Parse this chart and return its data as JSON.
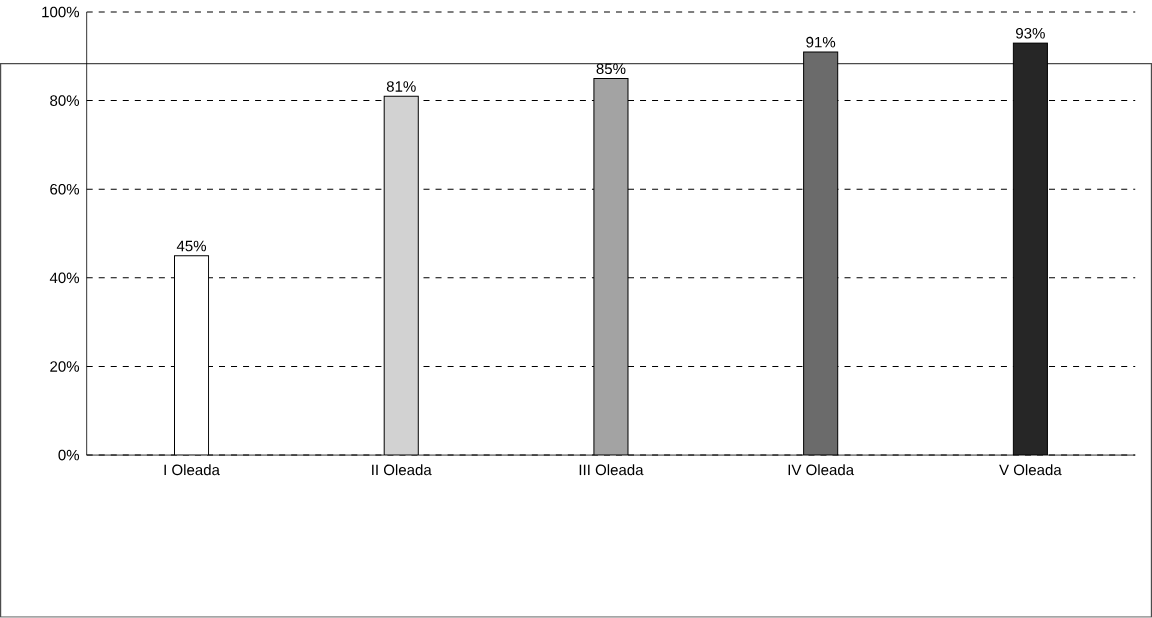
{
  "chart_data": {
    "type": "bar",
    "categories": [
      "I Oleada",
      "II Oleada",
      "III Oleada",
      "IV Oleada",
      "V Oleada"
    ],
    "values": [
      45,
      81,
      85,
      91,
      93
    ],
    "colors": [
      "#ffffff",
      "#d2d2d2",
      "#a3a3a3",
      "#6b6b6b",
      "#262626"
    ],
    "value_labels": [
      "45%",
      "81%",
      "85%",
      "91%",
      "93%"
    ],
    "ylim": [
      0,
      100
    ],
    "yticks": [
      {
        "value": 0,
        "label": "0%"
      },
      {
        "value": 20,
        "label": "20%"
      },
      {
        "value": 40,
        "label": "40%"
      },
      {
        "value": 60,
        "label": "60%"
      },
      {
        "value": 80,
        "label": "80%"
      },
      {
        "value": 100,
        "label": "100%"
      }
    ],
    "grid": "y"
  }
}
